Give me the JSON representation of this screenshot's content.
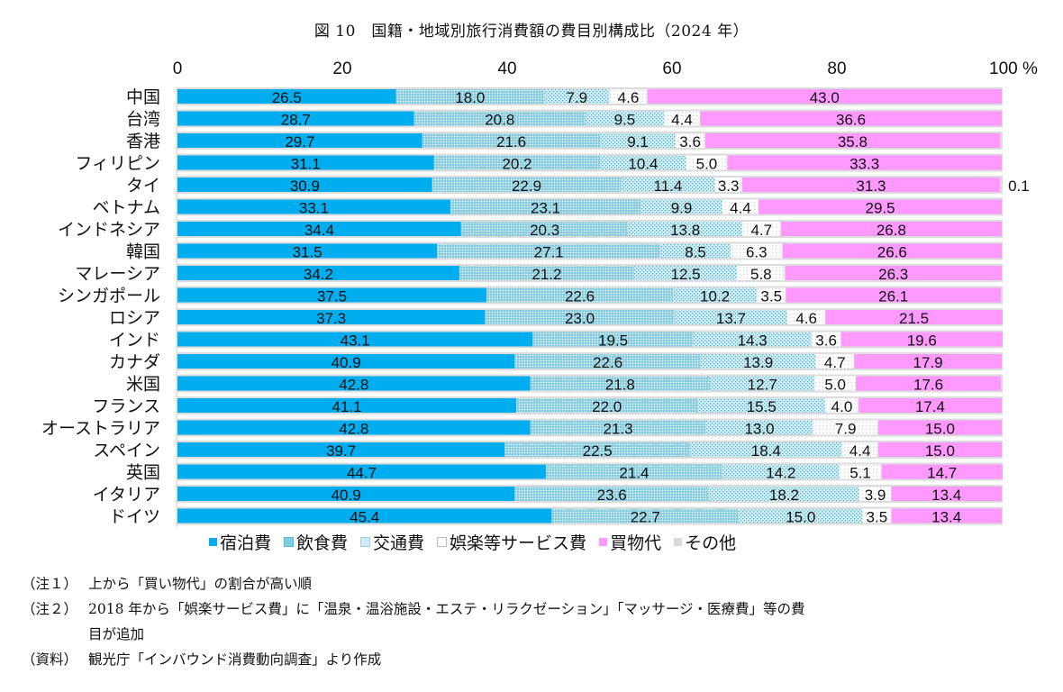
{
  "chart_data": {
    "type": "bar",
    "orientation": "horizontal",
    "stacked": true,
    "title": "図 10　国籍・地域別旅行消費額の費目別構成比（2024 年）",
    "xlabel": "",
    "ylabel": "",
    "xlim": [
      0,
      100
    ],
    "x_ticks": [
      "0",
      "20",
      "40",
      "60",
      "80",
      "100 %"
    ],
    "grid": false,
    "legend_position": "bottom",
    "categories": [
      "中国",
      "台湾",
      "香港",
      "フィリピン",
      "タイ",
      "ベトナム",
      "インドネシア",
      "韓国",
      "マレーシア",
      "シンガポール",
      "ロシア",
      "インド",
      "カナダ",
      "米国",
      "フランス",
      "オーストラリア",
      "スペイン",
      "英国",
      "イタリア",
      "ドイツ"
    ],
    "series": [
      {
        "name": "宿泊費",
        "color": "#00aeef",
        "pattern": "solid",
        "values": [
          26.5,
          28.7,
          29.7,
          31.1,
          30.9,
          33.1,
          34.4,
          31.5,
          34.2,
          37.5,
          37.3,
          43.1,
          40.9,
          42.8,
          41.1,
          42.8,
          39.7,
          44.7,
          40.9,
          45.4
        ]
      },
      {
        "name": "飲食費",
        "color": "#7fd0e4",
        "pattern": "dense-dots",
        "values": [
          18.0,
          20.8,
          21.6,
          20.2,
          22.9,
          23.1,
          20.3,
          27.1,
          21.2,
          22.6,
          23.0,
          19.5,
          22.6,
          21.8,
          22.0,
          21.3,
          22.5,
          21.4,
          23.6,
          22.7
        ]
      },
      {
        "name": "交通費",
        "color": "#b9e3ee",
        "pattern": "sparse-dots",
        "values": [
          7.9,
          9.5,
          9.1,
          10.4,
          11.4,
          9.9,
          13.8,
          8.5,
          12.5,
          10.2,
          13.7,
          14.3,
          13.9,
          12.7,
          15.5,
          13.0,
          18.4,
          14.2,
          18.2,
          15.0
        ]
      },
      {
        "name": "娯楽等サービス費",
        "color": "#ffffff",
        "pattern": "white",
        "values": [
          4.6,
          4.4,
          3.6,
          5.0,
          3.3,
          4.4,
          4.7,
          6.3,
          5.8,
          3.5,
          4.6,
          3.6,
          4.7,
          5.0,
          4.0,
          7.9,
          4.4,
          5.1,
          3.9,
          3.5
        ]
      },
      {
        "name": "買物代",
        "color": "#ff99ff",
        "pattern": "solid",
        "values": [
          43.0,
          36.6,
          35.8,
          33.3,
          31.3,
          29.5,
          26.8,
          26.6,
          26.3,
          26.1,
          21.5,
          19.6,
          17.9,
          17.6,
          17.4,
          15.0,
          15.0,
          14.7,
          13.4,
          13.4
        ]
      },
      {
        "name": "その他",
        "color": "#d9d9d9",
        "pattern": "solid",
        "values": [
          null,
          null,
          null,
          null,
          0.1,
          null,
          null,
          null,
          null,
          null,
          null,
          null,
          null,
          null,
          null,
          null,
          null,
          null,
          null,
          null
        ]
      }
    ]
  },
  "notes": [
    {
      "key": "（注１）",
      "text": "上から「買い物代」の割合が高い順"
    },
    {
      "key": "（注２）",
      "text": "2018 年から「娯楽サービス費」に「温泉・温浴施設・エステ・リラクゼーション」「マッサージ・医療費」等の費"
    },
    {
      "key": "",
      "text": "目が追加"
    },
    {
      "key": "（資料）",
      "text": "観光庁「インバウンド消費動向調査」より作成"
    }
  ]
}
